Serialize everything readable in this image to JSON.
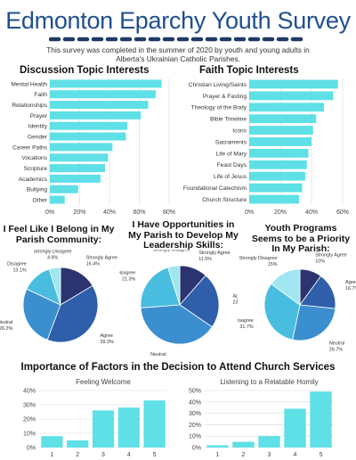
{
  "header": {
    "title": "Edmonton Eparchy Youth Survey",
    "subtitle": "This survey was completed in the summer of 2020 by youth and young adults in Alberta's Ukrainian Catholic Parishes."
  },
  "colors": {
    "bar": "#5ee0e6",
    "title": "#1f4f8f",
    "navy": "#2b3470",
    "blue": "#2f5faa",
    "midblue": "#3b8fcf",
    "teal": "#48bde0",
    "light": "#9fe6f0"
  },
  "chart_data": [
    {
      "id": "discussion",
      "type": "bar",
      "orientation": "horizontal",
      "title": "Discussion Topic Interests",
      "categories": [
        "Mental Health",
        "Faith",
        "Relationships",
        "Prayer",
        "Identity",
        "Gender",
        "Career Paths",
        "Vocations",
        "Scripture",
        "Academics",
        "Bullying",
        "Other"
      ],
      "values": [
        75,
        71,
        66,
        61,
        52,
        51,
        42,
        39,
        37,
        34,
        19,
        10
      ],
      "xlim": [
        0,
        80
      ],
      "ticks": [
        "0%",
        "20%",
        "40%",
        "60%",
        "80%"
      ],
      "grid": true
    },
    {
      "id": "faith",
      "type": "bar",
      "orientation": "horizontal",
      "title": "Faith Topic Interests",
      "categories": [
        "Christian Living/Saints",
        "Prayer & Fasting",
        "Theology of the Body",
        "Bible Timeline",
        "Icons",
        "Sacraments",
        "Life of Mary",
        "Feast Days",
        "Life of Jesus",
        "Foundational Catechism",
        "Church Structure"
      ],
      "values": [
        57,
        54,
        48,
        43,
        41,
        40,
        38,
        37,
        36,
        34,
        32
      ],
      "xlim": [
        0,
        60
      ],
      "ticks": [
        "0%",
        "20%",
        "40%",
        "60%"
      ],
      "grid": true
    },
    {
      "id": "belong",
      "type": "pie",
      "title": "I Feel Like I Belong in My Parish Community:",
      "slices": [
        {
          "label": "Strongly Agree",
          "value": 16.4,
          "text": "16.4%",
          "color": "#2b3470"
        },
        {
          "label": "Agree",
          "value": 39.3,
          "text": "39.3%",
          "color": "#2f5faa"
        },
        {
          "label": "Neutral",
          "value": 26.2,
          "text": "26.2%",
          "color": "#3b8fcf"
        },
        {
          "label": "Disagree",
          "value": 13.1,
          "text": "13.1%",
          "color": "#48bde0"
        },
        {
          "label": "Strongly Disagree",
          "value": 4.9,
          "text": "4.9%",
          "color": "#9fe6f0"
        }
      ]
    },
    {
      "id": "leadership",
      "type": "pie",
      "title": "I Have Opportunities in My Parish to Develop My Leadership Skills:",
      "slices": [
        {
          "label": "Strongly Agree",
          "value": 11.5,
          "text": "11.5%",
          "color": "#2b3470"
        },
        {
          "label": "Agree",
          "value": 23.0,
          "text": "23%",
          "color": "#2f5faa"
        },
        {
          "label": "Neutral",
          "value": 39.3,
          "text": "39.3%",
          "color": "#3b8fcf"
        },
        {
          "label": "Disagree",
          "value": 21.3,
          "text": "21.3%",
          "color": "#48bde0"
        },
        {
          "label": "Strongly Disagree",
          "value": 4.9,
          "text": "",
          "color": "#9fe6f0"
        }
      ]
    },
    {
      "id": "programs",
      "type": "pie",
      "title": "Youth Programs Seems to be a Priority In My Parish:",
      "slices": [
        {
          "label": "Strongly Agree",
          "value": 10,
          "text": "10%",
          "color": "#2b3470"
        },
        {
          "label": "Agree",
          "value": 16.7,
          "text": "16.7%",
          "color": "#2f5faa"
        },
        {
          "label": "Neutral",
          "value": 26.7,
          "text": "26.7%",
          "color": "#3b8fcf"
        },
        {
          "label": "Disagree",
          "value": 31.7,
          "text": "31.7%",
          "color": "#48bde0"
        },
        {
          "label": "Strongly Disagree",
          "value": 15,
          "text": "15%",
          "color": "#9fe6f0"
        }
      ]
    },
    {
      "id": "welcome",
      "type": "bar",
      "title": "Feeling Welcome",
      "categories": [
        "1",
        "2",
        "3",
        "4",
        "5"
      ],
      "values": [
        8,
        5,
        26,
        28,
        33
      ],
      "ylim": [
        0,
        40
      ],
      "ticks": [
        "0%",
        "10%",
        "20%",
        "30%",
        "40%"
      ],
      "grid": true
    },
    {
      "id": "homily",
      "type": "bar",
      "title": "Listening to a Relatable Homily",
      "categories": [
        "1",
        "2",
        "3",
        "4",
        "5"
      ],
      "values": [
        2,
        5,
        10,
        34,
        49
      ],
      "ylim": [
        0,
        50
      ],
      "ticks": [
        "0%",
        "10%",
        "20%",
        "30%",
        "40%",
        "50%"
      ],
      "grid": true
    }
  ],
  "importance_title": "Importance of Factors in the Decision to Attend Church Services"
}
